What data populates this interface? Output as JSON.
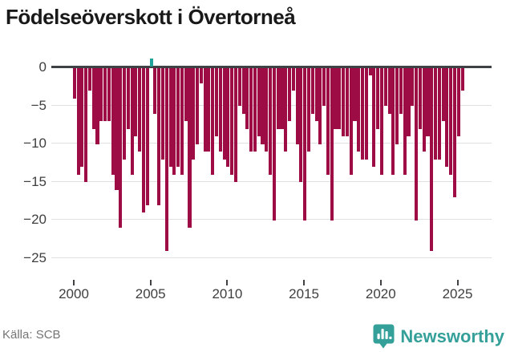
{
  "title": "Födelseöverskott i Övertorneå",
  "source": "Källa: SCB",
  "brand": {
    "name": "Newsworthy"
  },
  "colors": {
    "negative_bar": "#9e0c46",
    "positive_bar": "#1fa29a",
    "axis_line": "#3f4245",
    "gridline": "#e0e0e0",
    "tick_text": "#3f3f3f",
    "brand_teal": "#35a099"
  },
  "chart_data": {
    "type": "bar",
    "title": "Födelseöverskott i Övertorneå",
    "xlabel": "",
    "ylabel": "",
    "frequency": "quarterly",
    "start_period": "2000Q1",
    "end_period": "2025Q2",
    "ylim": [
      -25,
      1
    ],
    "grid": true,
    "y_ticks": [
      0,
      -5,
      -10,
      -15,
      -20,
      -25
    ],
    "y_tick_labels": [
      "0",
      "−5",
      "−10",
      "−15",
      "−20",
      "−25"
    ],
    "x_tick_years": [
      2000,
      2005,
      2010,
      2015,
      2020,
      2025
    ],
    "x_tick_labels": [
      "2000",
      "2005",
      "2010",
      "2015",
      "2020",
      "2025"
    ],
    "series": [
      {
        "name": "Födelseöverskott",
        "values": [
          -4,
          -14,
          -13,
          -15,
          -3,
          -8,
          -10,
          -7,
          -7,
          -7,
          -14,
          -16,
          -21,
          -12,
          -8,
          -14,
          -9,
          -11,
          -19,
          -18,
          1,
          -6,
          -18,
          -12,
          -24,
          -13,
          -14,
          -13,
          -14,
          -7,
          -21,
          -12,
          -10,
          -2,
          -11,
          -11,
          -14,
          -9,
          -11,
          -12,
          -13,
          -14,
          -15,
          -5,
          -6,
          -8,
          -11,
          -11,
          -9,
          -10,
          -11,
          -14,
          -20,
          -8,
          -8,
          -11,
          -7,
          -3,
          -10,
          -15,
          -20,
          -11,
          -6,
          -7,
          -10,
          -5,
          -14,
          -20,
          -8,
          -8,
          -9,
          -9,
          -14,
          -7,
          -11,
          -12,
          -12,
          -1,
          -13,
          -8,
          -14,
          -5,
          -6,
          -14,
          -10,
          -6,
          -14,
          -9,
          -5,
          -20,
          -8,
          -11,
          -9,
          -24,
          -12,
          -12,
          -7,
          -13,
          -14,
          -17,
          -9,
          -3
        ]
      }
    ]
  }
}
